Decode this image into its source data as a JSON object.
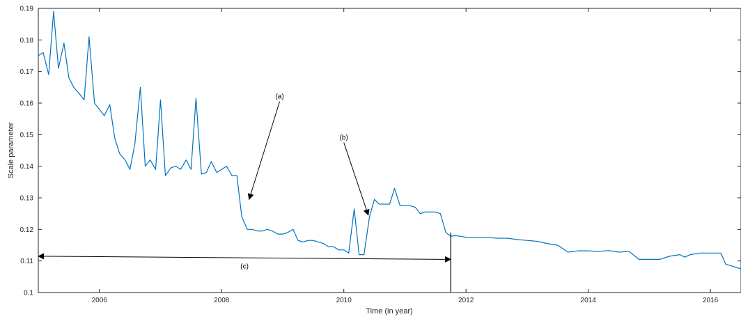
{
  "chart_data": {
    "type": "line",
    "title": "",
    "xlabel": "Time (in year)",
    "ylabel": "Scale parameter",
    "xlim": [
      2005,
      2016.5
    ],
    "ylim": [
      0.1,
      0.19
    ],
    "grid": false,
    "x_ticks": [
      2006,
      2008,
      2010,
      2012,
      2014,
      2016
    ],
    "x_tick_labels": [
      "2006",
      "2008",
      "2010",
      "2012",
      "2014",
      "2016"
    ],
    "y_ticks": [
      0.1,
      0.11,
      0.12,
      0.13,
      0.14,
      0.15,
      0.16,
      0.17,
      0.18,
      0.19
    ],
    "y_tick_labels": [
      "0.1",
      "0.11",
      "0.12",
      "0.13",
      "0.14",
      "0.15",
      "0.16",
      "0.17",
      "0.18",
      "0.19"
    ],
    "line_color": "#0072bd",
    "series": [
      {
        "x": [
          2005.0,
          2005.08,
          2005.17,
          2005.25,
          2005.33,
          2005.42,
          2005.5,
          2005.58,
          2005.67,
          2005.75,
          2005.83,
          2005.92,
          2006.0,
          2006.08,
          2006.17,
          2006.25,
          2006.33,
          2006.42,
          2006.5,
          2006.58,
          2006.67,
          2006.75,
          2006.83,
          2006.92,
          2007.0,
          2007.08,
          2007.17,
          2007.25,
          2007.33,
          2007.42,
          2007.5,
          2007.58,
          2007.67,
          2007.75,
          2007.83,
          2007.92,
          2008.0,
          2008.08,
          2008.17,
          2008.25,
          2008.33,
          2008.42,
          2008.5,
          2008.58,
          2008.67,
          2008.75,
          2008.83,
          2008.92,
          2009.0,
          2009.08,
          2009.17,
          2009.25,
          2009.33,
          2009.42,
          2009.5,
          2009.58,
          2009.67,
          2009.75,
          2009.83,
          2009.92,
          2010.0,
          2010.08,
          2010.17,
          2010.25,
          2010.33,
          2010.42,
          2010.5,
          2010.58,
          2010.67,
          2010.75,
          2010.83,
          2010.92,
          2011.0,
          2011.08,
          2011.17,
          2011.25,
          2011.33,
          2011.42,
          2011.5,
          2011.58,
          2011.67,
          2011.75,
          2011.83,
          2011.92,
          2012.0,
          2012.17,
          2012.33,
          2012.5,
          2012.67,
          2012.83,
          2013.0,
          2013.17,
          2013.33,
          2013.5,
          2013.67,
          2013.83,
          2014.0,
          2014.17,
          2014.33,
          2014.5,
          2014.67,
          2014.83,
          2015.0,
          2015.17,
          2015.33,
          2015.5,
          2015.58,
          2015.67,
          2015.83,
          2016.0,
          2016.17,
          2016.25,
          2016.33,
          2016.5
        ],
        "y": [
          0.175,
          0.176,
          0.169,
          0.189,
          0.171,
          0.179,
          0.168,
          0.165,
          0.163,
          0.161,
          0.181,
          0.16,
          0.158,
          0.156,
          0.1595,
          0.149,
          0.144,
          0.142,
          0.139,
          0.147,
          0.165,
          0.14,
          0.142,
          0.139,
          0.161,
          0.137,
          0.1395,
          0.14,
          0.139,
          0.142,
          0.139,
          0.1615,
          0.1375,
          0.138,
          0.1415,
          0.138,
          0.139,
          0.14,
          0.137,
          0.137,
          0.124,
          0.12,
          0.12,
          0.1195,
          0.1195,
          0.12,
          0.1195,
          0.1185,
          0.1185,
          0.119,
          0.12,
          0.1165,
          0.116,
          0.1165,
          0.1165,
          0.116,
          0.1155,
          0.1145,
          0.1145,
          0.1135,
          0.1135,
          0.1125,
          0.1265,
          0.112,
          0.112,
          0.124,
          0.1295,
          0.128,
          0.128,
          0.128,
          0.133,
          0.1275,
          0.1275,
          0.1275,
          0.127,
          0.125,
          0.1255,
          0.1255,
          0.1255,
          0.125,
          0.119,
          0.1178,
          0.118,
          0.1178,
          0.1175,
          0.1175,
          0.1175,
          0.1172,
          0.1172,
          0.1168,
          0.1165,
          0.1162,
          0.1155,
          0.115,
          0.1128,
          0.1132,
          0.1132,
          0.113,
          0.1133,
          0.1128,
          0.113,
          0.1105,
          0.1105,
          0.1105,
          0.1115,
          0.112,
          0.1112,
          0.112,
          0.1125,
          0.1125,
          0.1125,
          0.109,
          0.1085,
          0.1075
        ]
      }
    ],
    "annotations": [
      {
        "label": "(a)",
        "type": "arrow",
        "from": [
          2008.95,
          0.1605
        ],
        "to": [
          2008.45,
          0.1295
        ]
      },
      {
        "label": "(b)",
        "type": "arrow",
        "from": [
          2010.0,
          0.1475
        ],
        "to": [
          2010.4,
          0.1245
        ]
      },
      {
        "label": "(c)",
        "type": "double-arrow",
        "from": [
          2005.0,
          0.1115
        ],
        "to": [
          2011.75,
          0.1105
        ]
      }
    ],
    "vertical_marker": {
      "x": 2011.75,
      "from": 0.1,
      "to": 0.119
    }
  }
}
